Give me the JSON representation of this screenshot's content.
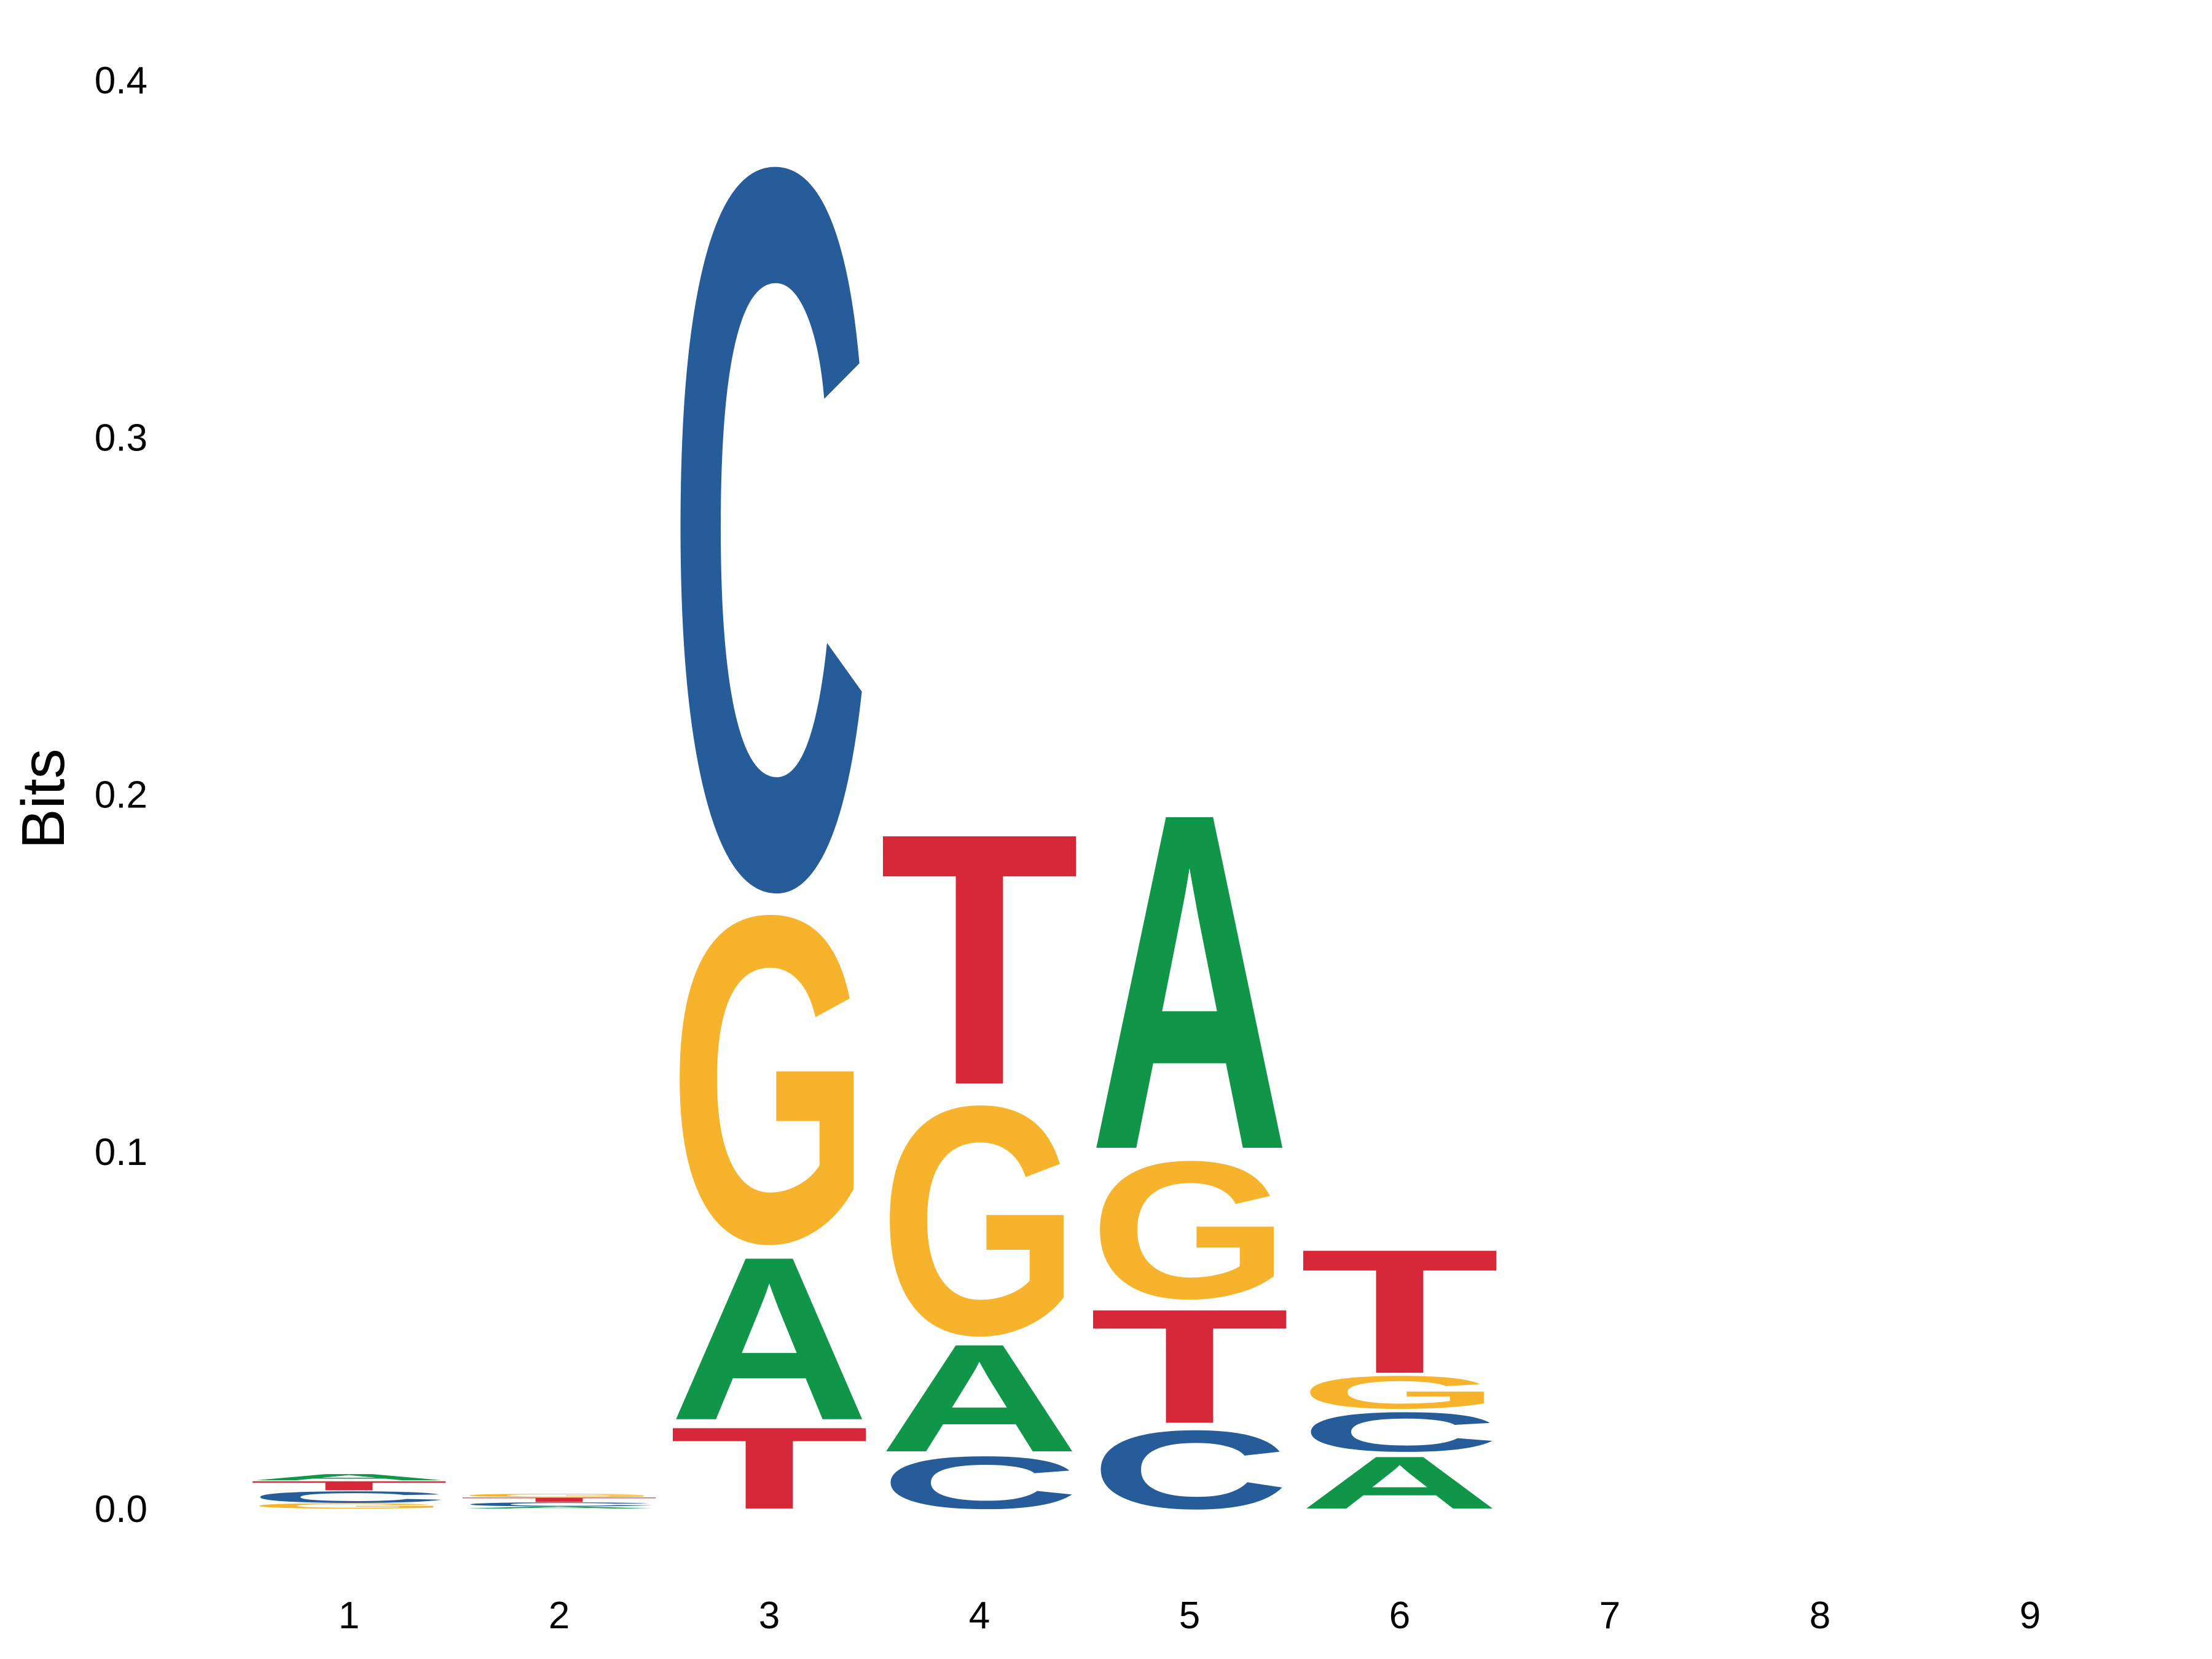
{
  "chart_data": {
    "type": "sequence-logo",
    "title": "",
    "xlabel": "",
    "ylabel": "Bits",
    "ylim": [
      0,
      0.4
    ],
    "yticks": [
      "0.0",
      "0.1",
      "0.2",
      "0.3",
      "0.4"
    ],
    "positions": [
      "1",
      "2",
      "3",
      "4",
      "5",
      "6",
      "7",
      "8",
      "9"
    ],
    "colors": {
      "A": "#109648",
      "C": "#255c99",
      "G": "#f7b32b",
      "T": "#d62839"
    },
    "stacks": [
      [
        {
          "letter": "G",
          "bits": 0.0016
        },
        {
          "letter": "C",
          "bits": 0.0035
        },
        {
          "letter": "T",
          "bits": 0.0028
        },
        {
          "letter": "A",
          "bits": 0.0019
        }
      ],
      [
        {
          "letter": "A",
          "bits": 0.0006
        },
        {
          "letter": "C",
          "bits": 0.0012
        },
        {
          "letter": "T",
          "bits": 0.0014
        },
        {
          "letter": "G",
          "bits": 0.001
        }
      ],
      [
        {
          "letter": "T",
          "bits": 0.025
        },
        {
          "letter": "A",
          "bits": 0.05
        },
        {
          "letter": "G",
          "bits": 0.1
        },
        {
          "letter": "C",
          "bits": 0.22
        }
      ],
      [
        {
          "letter": "C",
          "bits": 0.016
        },
        {
          "letter": "A",
          "bits": 0.033
        },
        {
          "letter": "G",
          "bits": 0.07
        },
        {
          "letter": "T",
          "bits": 0.077
        }
      ],
      [
        {
          "letter": "C",
          "bits": 0.024
        },
        {
          "letter": "T",
          "bits": 0.035
        },
        {
          "letter": "G",
          "bits": 0.042
        },
        {
          "letter": "A",
          "bits": 0.103
        }
      ],
      [
        {
          "letter": "A",
          "bits": 0.016
        },
        {
          "letter": "C",
          "bits": 0.012
        },
        {
          "letter": "G",
          "bits": 0.01
        },
        {
          "letter": "T",
          "bits": 0.038
        }
      ],
      [],
      [],
      []
    ]
  }
}
